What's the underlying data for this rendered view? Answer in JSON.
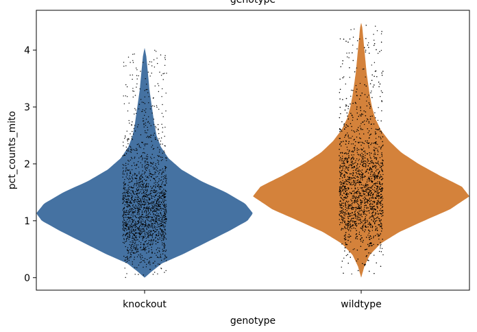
{
  "chart_data": {
    "type": "violin",
    "title": "genotype",
    "xlabel": "genotype",
    "ylabel": "pct_counts_mito",
    "categories": [
      "knockout",
      "wildtype"
    ],
    "ylim": [
      -0.22,
      4.7
    ],
    "yticks": [
      0,
      1,
      2,
      3,
      4
    ],
    "jitter_points": true,
    "series": [
      {
        "category": "knockout",
        "color": "#4572a2",
        "range": [
          0.0,
          4.04
        ],
        "n_points_approx": 1800,
        "density": [
          [
            0.0,
            0.0
          ],
          [
            0.1,
            0.06
          ],
          [
            0.25,
            0.16
          ],
          [
            0.4,
            0.34
          ],
          [
            0.6,
            0.55
          ],
          [
            0.8,
            0.76
          ],
          [
            1.0,
            0.95
          ],
          [
            1.13,
            1.0
          ],
          [
            1.3,
            0.93
          ],
          [
            1.5,
            0.75
          ],
          [
            1.7,
            0.52
          ],
          [
            1.9,
            0.34
          ],
          [
            2.1,
            0.22
          ],
          [
            2.3,
            0.15
          ],
          [
            2.5,
            0.11
          ],
          [
            2.7,
            0.09
          ],
          [
            2.9,
            0.075
          ],
          [
            3.1,
            0.06
          ],
          [
            3.3,
            0.045
          ],
          [
            3.5,
            0.035
          ],
          [
            3.7,
            0.025
          ],
          [
            3.9,
            0.015
          ],
          [
            4.04,
            0.0
          ]
        ]
      },
      {
        "category": "wildtype",
        "color": "#d4823b",
        "range": [
          0.0,
          4.48
        ],
        "n_points_approx": 2600,
        "density": [
          [
            0.0,
            0.0
          ],
          [
            0.2,
            0.03
          ],
          [
            0.4,
            0.08
          ],
          [
            0.6,
            0.18
          ],
          [
            0.8,
            0.35
          ],
          [
            1.0,
            0.58
          ],
          [
            1.2,
            0.82
          ],
          [
            1.43,
            1.0
          ],
          [
            1.6,
            0.93
          ],
          [
            1.8,
            0.72
          ],
          [
            2.0,
            0.53
          ],
          [
            2.2,
            0.37
          ],
          [
            2.4,
            0.26
          ],
          [
            2.6,
            0.18
          ],
          [
            2.8,
            0.13
          ],
          [
            3.0,
            0.1
          ],
          [
            3.2,
            0.08
          ],
          [
            3.4,
            0.065
          ],
          [
            3.6,
            0.05
          ],
          [
            3.8,
            0.04
          ],
          [
            4.0,
            0.03
          ],
          [
            4.2,
            0.02
          ],
          [
            4.4,
            0.01
          ],
          [
            4.48,
            0.0
          ]
        ]
      }
    ]
  }
}
